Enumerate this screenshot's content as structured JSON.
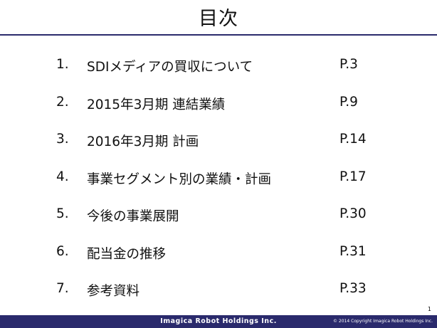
{
  "slide": {
    "title": "目次",
    "page_number": "1"
  },
  "toc": [
    {
      "num": "1.",
      "label": "SDIメディアの買収について",
      "page": "P.3"
    },
    {
      "num": "2.",
      "label": "2015年3月期 連結業績",
      "page": "P.9"
    },
    {
      "num": "3.",
      "label": "2016年3月期 計画",
      "page": "P.14"
    },
    {
      "num": "4.",
      "label": "事業セグメント別の業績・計画",
      "page": "P.17"
    },
    {
      "num": "5.",
      "label": "今後の事業展開",
      "page": "P.30"
    },
    {
      "num": "6.",
      "label": "配当金の推移",
      "page": "P.31"
    },
    {
      "num": "7.",
      "label": "参考資料",
      "page": "P.33"
    }
  ],
  "footer": {
    "brand": "Imagica Robot Holdings Inc.",
    "copyright": "© 2014 Copyright Imagica Robot Holdings Inc."
  },
  "colors": {
    "accent": "#2a2a6c"
  }
}
